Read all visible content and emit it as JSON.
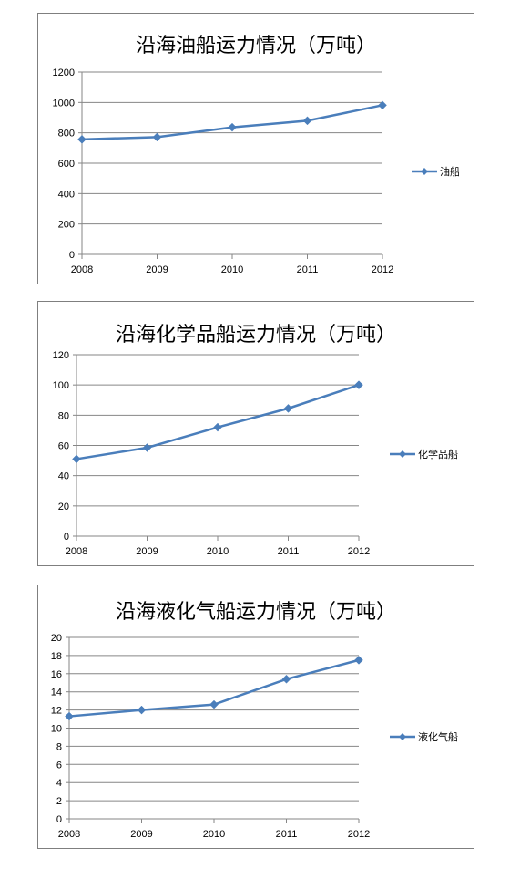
{
  "chart_data": [
    {
      "type": "line",
      "title": "沿海油船运力情况（万吨）",
      "categories": [
        "2008",
        "2009",
        "2010",
        "2011",
        "2012"
      ],
      "series": [
        {
          "name": "油船",
          "values": [
            757,
            772,
            836,
            880,
            982
          ]
        }
      ],
      "ylim": [
        0,
        1200
      ],
      "yticks": [
        "0",
        "200",
        "400",
        "600",
        "800",
        "1000",
        "1200"
      ],
      "grid": true,
      "legend": "right",
      "color": "#4a7ebb"
    },
    {
      "type": "line",
      "title": "沿海化学品船运力情况（万吨）",
      "categories": [
        "2008",
        "2009",
        "2010",
        "2011",
        "2012"
      ],
      "series": [
        {
          "name": "化学品船",
          "values": [
            51,
            58.5,
            72,
            84.5,
            100
          ]
        }
      ],
      "ylim": [
        0,
        120
      ],
      "yticks": [
        "0",
        "20",
        "40",
        "60",
        "80",
        "100",
        "120"
      ],
      "grid": true,
      "legend": "right",
      "color": "#4a7ebb"
    },
    {
      "type": "line",
      "title": "沿海液化气船运力情况（万吨）",
      "categories": [
        "2008",
        "2009",
        "2010",
        "2011",
        "2012"
      ],
      "series": [
        {
          "name": "液化气船",
          "values": [
            11.3,
            12,
            12.6,
            15.4,
            17.5
          ]
        }
      ],
      "ylim": [
        0,
        20
      ],
      "yticks": [
        "0",
        "2",
        "4",
        "6",
        "8",
        "10",
        "12",
        "14",
        "16",
        "18",
        "20"
      ],
      "grid": true,
      "legend": "right",
      "color": "#4a7ebb"
    }
  ]
}
